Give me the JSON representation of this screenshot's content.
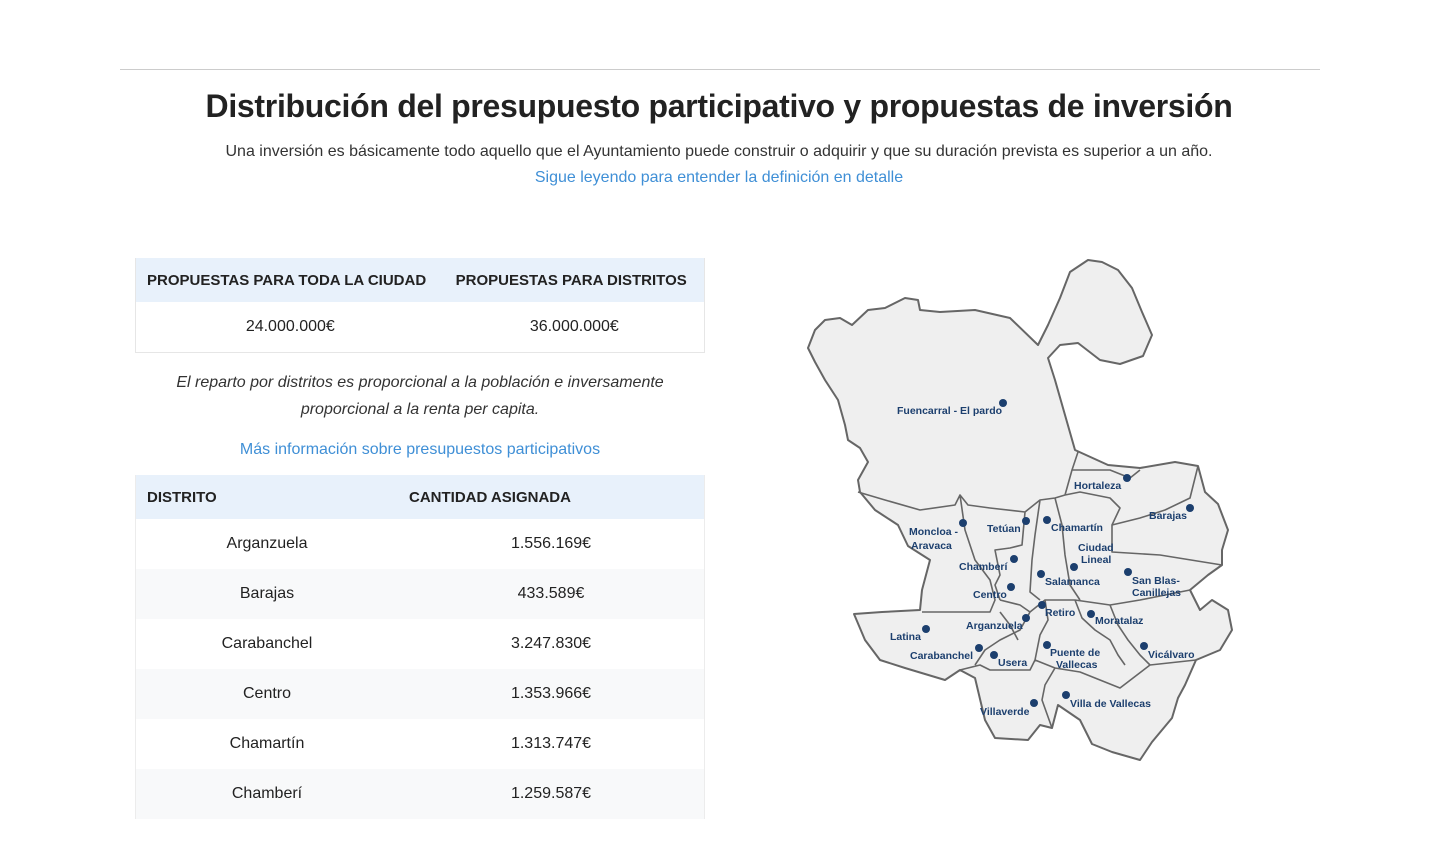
{
  "header": {
    "title": "Distribución del presupuesto participativo y propuestas de inversión",
    "intro": "Una inversión es básicamente todo aquello que el Ayuntamiento puede construir o adquirir y que su duración prevista es superior a un año.",
    "intro_link": "Sigue leyendo para entender la definición en detalle"
  },
  "totals": {
    "headers": [
      "PROPUESTAS PARA TODA LA CIUDAD",
      "PROPUESTAS PARA DISTRITOS"
    ],
    "values": [
      "24.000.000€",
      "36.000.000€"
    ]
  },
  "note": "El reparto por distritos es proporcional a la población e inversamente proporcional a la renta per capita.",
  "more_link": "Más información sobre presupuestos participativos",
  "districts_table": {
    "headers": [
      "DISTRITO",
      "CANTIDAD ASIGNADA"
    ],
    "rows": [
      {
        "name": "Arganzuela",
        "amount": "1.556.169€"
      },
      {
        "name": "Barajas",
        "amount": "433.589€"
      },
      {
        "name": "Carabanchel",
        "amount": "3.247.830€"
      },
      {
        "name": "Centro",
        "amount": "1.353.966€"
      },
      {
        "name": "Chamartín",
        "amount": "1.313.747€"
      },
      {
        "name": "Chamberí",
        "amount": "1.259.587€"
      }
    ]
  },
  "map": {
    "colors": {
      "fill": "#efefef",
      "stroke": "#666666",
      "marker": "#1c3f6e"
    },
    "labels": {
      "fuencarral": "Fuencarral - El pardo",
      "hortaleza": "Hortaleza",
      "barajas": "Barajas",
      "moncloa_1": "Moncloa -",
      "moncloa_2": "Aravaca",
      "tetuan": "Tetúan",
      "chamartin": "Chamartín",
      "ciudad_lineal_1": "Ciudad",
      "ciudad_lineal_2": "Lineal",
      "chamberi": "Chamberí",
      "salamanca": "Salamanca",
      "san_blas_1": "San Blas-",
      "san_blas_2": "Canillejas",
      "centro": "Centro",
      "retiro": "Retiro",
      "moratalaz": "Moratalaz",
      "arganzuela": "Arganzuela",
      "latina": "Latina",
      "carabanchel": "Carabanchel",
      "usera": "Usera",
      "puente_1": "Puente de",
      "puente_2": "Vallecas",
      "vicalvaro": "Vicálvaro",
      "villaverde": "Villaverde",
      "villa_vallecas": "Villa de Vallecas"
    }
  }
}
